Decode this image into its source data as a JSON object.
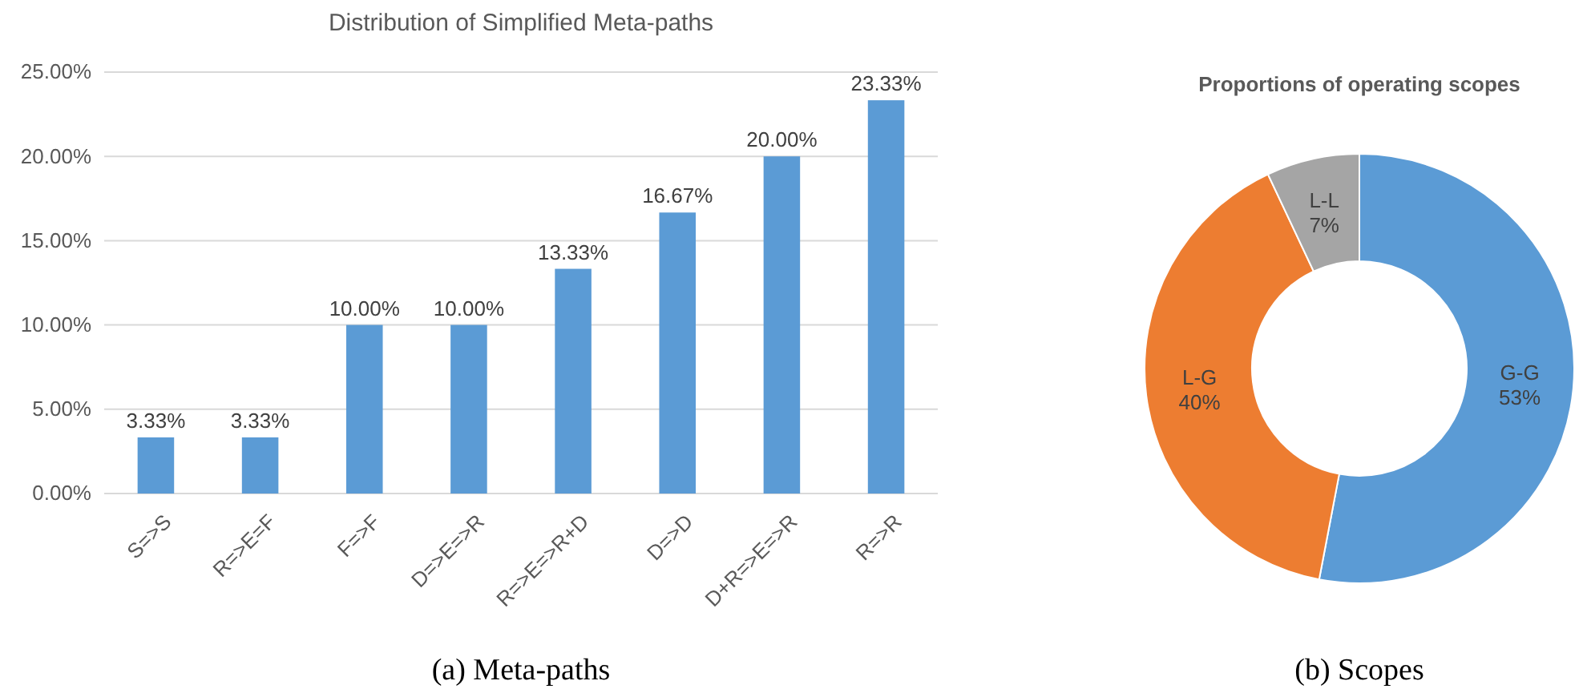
{
  "chart_data": [
    {
      "type": "bar",
      "title": "Distribution of Simplified Meta-paths",
      "categories": [
        "S=>S",
        "R=>E=F",
        "F=>F",
        "D=>E=>R",
        "R=>E=>R+D",
        "D=>D",
        "D+R=>E=>R",
        "R=>R"
      ],
      "values": [
        3.33,
        3.33,
        10.0,
        10.0,
        13.33,
        16.67,
        20.0,
        23.33
      ],
      "value_labels": [
        "3.33%",
        "3.33%",
        "10.00%",
        "10.00%",
        "13.33%",
        "16.67%",
        "20.00%",
        "23.33%"
      ],
      "color": "#5b9bd5",
      "ylim": [
        0,
        25
      ],
      "yticks": [
        {
          "value": 0,
          "label": "0.00%"
        },
        {
          "value": 5,
          "label": "5.00%"
        },
        {
          "value": 10,
          "label": "10.00%"
        },
        {
          "value": 15,
          "label": "15.00%"
        },
        {
          "value": 20,
          "label": "20.00%"
        },
        {
          "value": 25,
          "label": "25.00%"
        }
      ],
      "grid": "y",
      "annotations": [
        "(a) Meta-paths"
      ]
    },
    {
      "type": "donut",
      "title": "Proportions of operating scopes",
      "categories": [
        "G-G",
        "L-G",
        "L-L"
      ],
      "values": [
        53,
        40,
        7
      ],
      "value_labels": [
        "53%",
        "40%",
        "7%"
      ],
      "colors": [
        "#5b9bd5",
        "#ed7d31",
        "#a5a5a5"
      ],
      "annotations": [
        "(b) Scopes"
      ]
    }
  ]
}
